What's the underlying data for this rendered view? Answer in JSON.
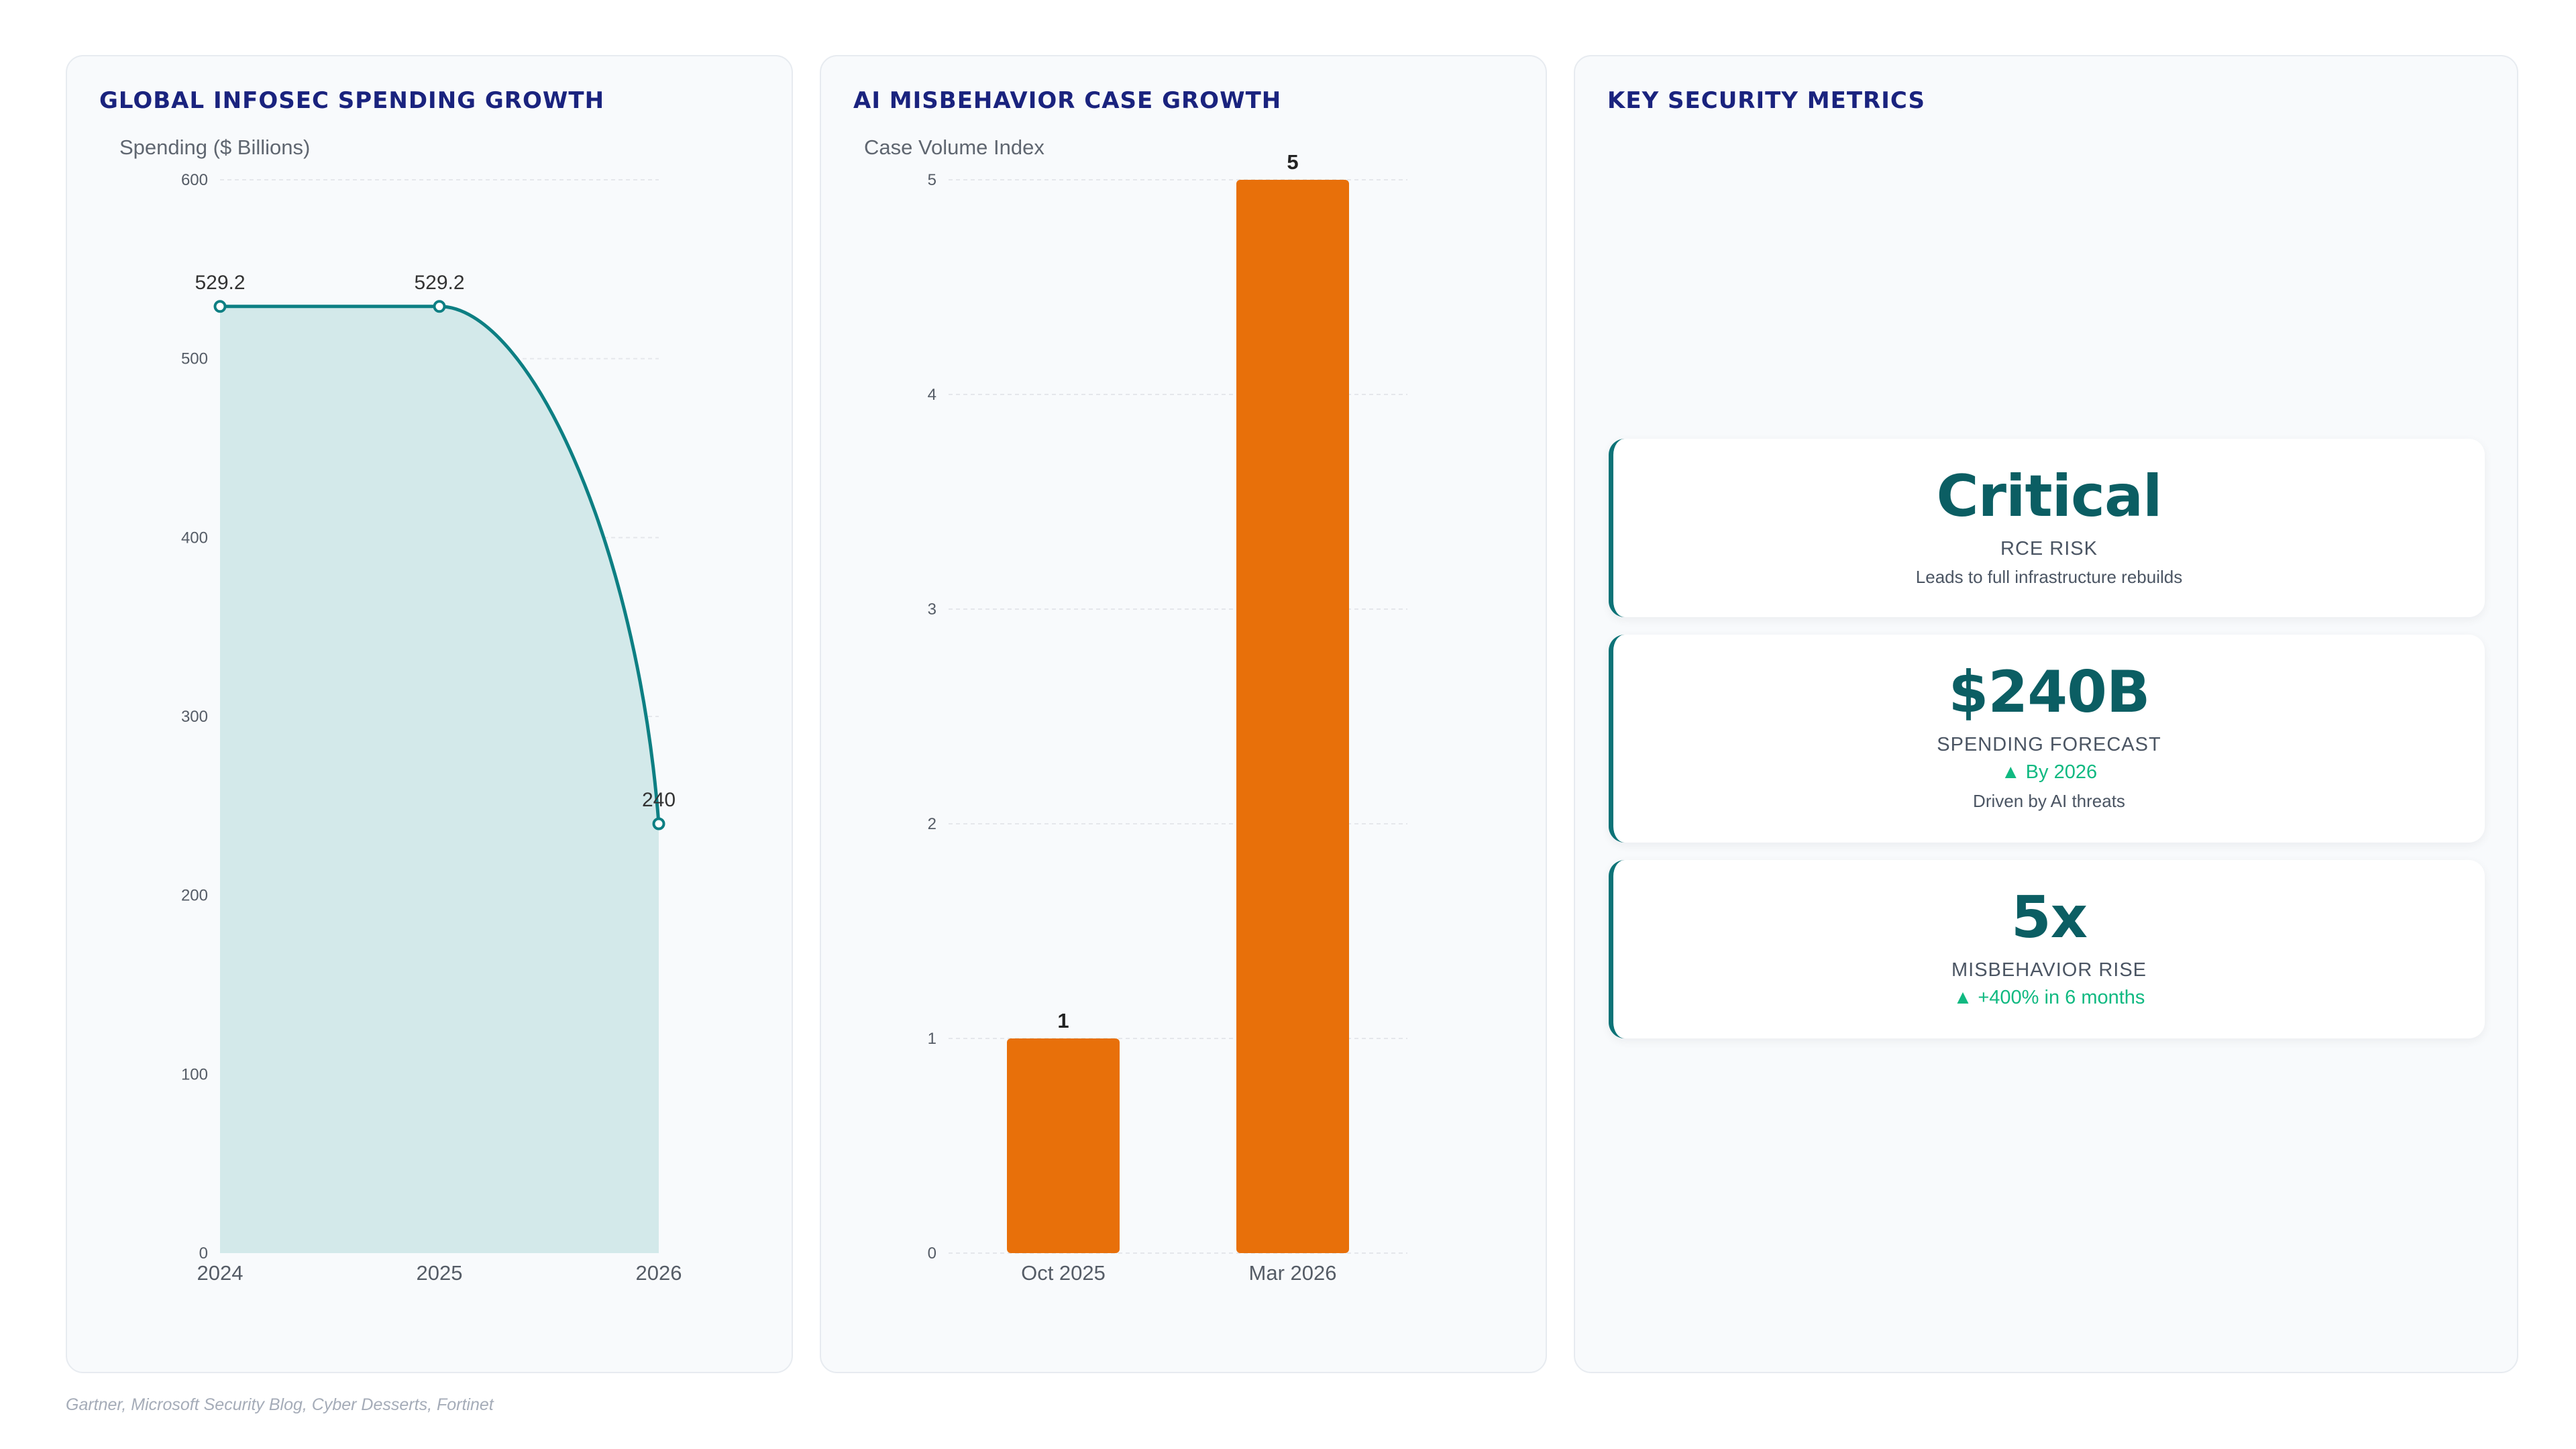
{
  "panels": {
    "spending_title": "GLOBAL INFOSEC SPENDING GROWTH",
    "cases_title": "AI MISBEHAVIOR CASE GROWTH",
    "metrics_title": "KEY SECURITY METRICS"
  },
  "chart_data": [
    {
      "type": "area",
      "title": "GLOBAL INFOSEC SPENDING GROWTH",
      "ylabel": "Spending ($ Billions)",
      "x": [
        "2024",
        "2025",
        "2026"
      ],
      "values": [
        529.2,
        529.2,
        240
      ],
      "data_labels": [
        "529.2",
        "529.2",
        "240"
      ],
      "ylim": [
        0,
        600
      ],
      "yticks": [
        "0",
        "100",
        "200",
        "300",
        "400",
        "500",
        "600"
      ],
      "grid": true,
      "colors": {
        "line": "#0d7f83",
        "fill": "#d3e9ea"
      }
    },
    {
      "type": "bar",
      "title": "AI MISBEHAVIOR CASE GROWTH",
      "ylabel": "Case Volume Index",
      "categories": [
        "Oct 2025",
        "Mar 2026"
      ],
      "values": [
        1,
        5
      ],
      "data_labels": [
        "1",
        "5"
      ],
      "ylim": [
        0,
        5
      ],
      "yticks": [
        "0",
        "1",
        "2",
        "3",
        "4",
        "5"
      ],
      "grid": true,
      "colors": {
        "bar": "#e8700a"
      }
    }
  ],
  "metrics": [
    {
      "value": "Critical",
      "label": "RCE RISK",
      "trend": "",
      "desc": "Leads to full infrastructure rebuilds"
    },
    {
      "value": "$240B",
      "label": "SPENDING FORECAST",
      "trend": "▲ By 2026",
      "desc": "Driven by AI threats"
    },
    {
      "value": "5x",
      "label": "MISBEHAVIOR RISE",
      "trend": "▲ +400% in 6 months",
      "desc": ""
    }
  ],
  "source": "Gartner, Microsoft Security Blog, Cyber Desserts, Fortinet",
  "colors": {
    "title": "#1a237e",
    "metric_value": "#0b5e63",
    "accent": "#0d7377",
    "trend": "#10b981"
  }
}
